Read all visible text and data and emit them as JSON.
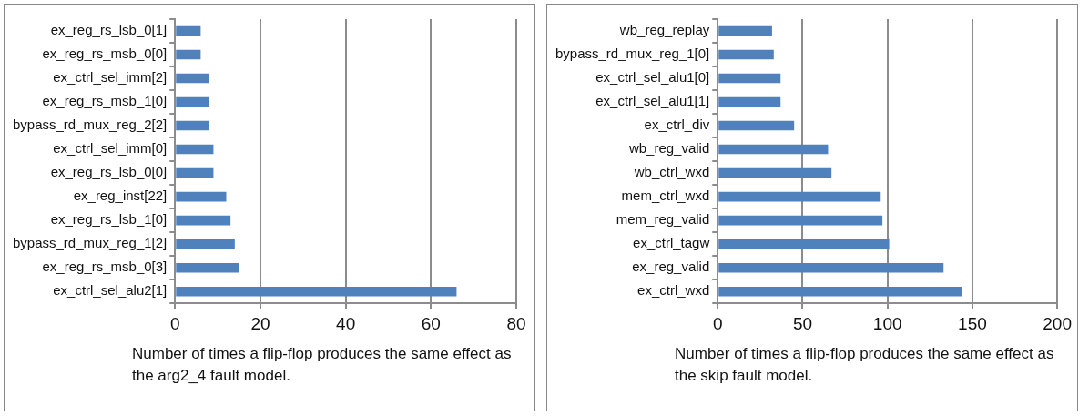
{
  "chart_data": [
    {
      "type": "bar",
      "orientation": "horizontal",
      "xlabel": "Number of times a flip-flop produces the same effect as the arg2_4 fault model.",
      "categories": [
        "ex_reg_rs_lsb_0[1]",
        "ex_reg_rs_msb_0[0]",
        "ex_ctrl_sel_imm[2]",
        "ex_reg_rs_msb_1[0]",
        "bypass_rd_mux_reg_2[2]",
        "ex_ctrl_sel_imm[0]",
        "ex_reg_rs_lsb_0[0]",
        "ex_reg_inst[22]",
        "ex_reg_rs_lsb_1[0]",
        "bypass_rd_mux_reg_1[2]",
        "ex_reg_rs_msb_0[3]",
        "ex_ctrl_sel_alu2[1]"
      ],
      "values": [
        6,
        6,
        8,
        8,
        8,
        9,
        9,
        12,
        13,
        14,
        15,
        66
      ],
      "color": "#4f81bd",
      "xlim": [
        0,
        80
      ],
      "xticks": [
        0,
        20,
        40,
        60,
        80
      ],
      "grid": "x",
      "legend": false
    },
    {
      "type": "bar",
      "orientation": "horizontal",
      "xlabel": "Number of times a flip-flop produces the same effect as the skip fault model.",
      "categories": [
        "wb_reg_replay",
        "bypass_rd_mux_reg_1[0]",
        "ex_ctrl_sel_alu1[0]",
        "ex_ctrl_sel_alu1[1]",
        "ex_ctrl_div",
        "wb_reg_valid",
        "wb_ctrl_wxd",
        "mem_ctrl_wxd",
        "mem_reg_valid",
        "ex_ctrl_tagw",
        "ex_reg_valid",
        "ex_ctrl_wxd"
      ],
      "values": [
        32,
        33,
        37,
        37,
        45,
        65,
        67,
        96,
        97,
        101,
        133,
        144
      ],
      "color": "#4f81bd",
      "xlim": [
        0,
        200
      ],
      "xticks": [
        0,
        50,
        100,
        150,
        200
      ],
      "grid": "x",
      "legend": false
    }
  ]
}
